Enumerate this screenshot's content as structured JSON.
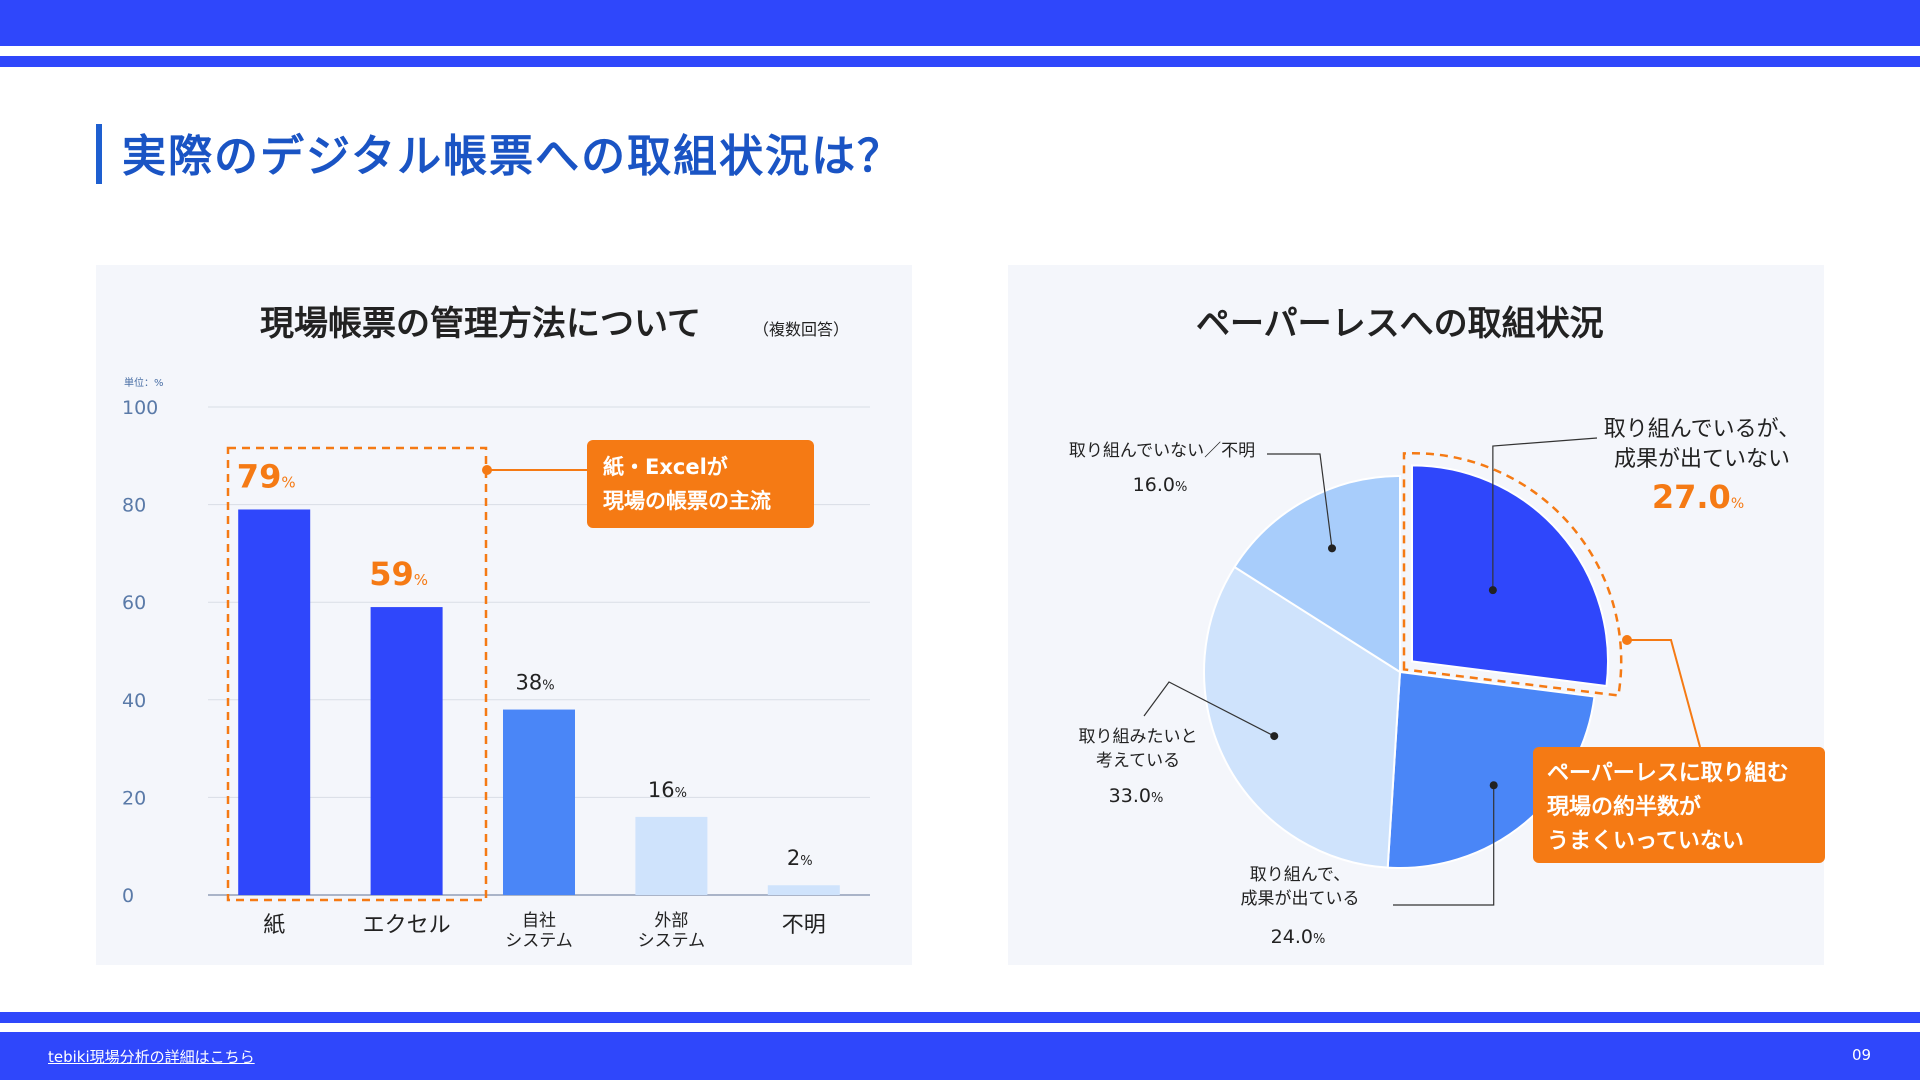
{
  "page": {
    "title": "実際のデジタル帳票への取組状況は？",
    "footer_link": "tebiki現場分析の詳細はこちら",
    "page_number": "09",
    "brand_color": "#2f47fb",
    "accent_color": "#f57a14"
  },
  "left_panel": {
    "title": "現場帳票の管理方法について",
    "title_note": "（複数回答）",
    "callout": [
      "紙・Excelが",
      "現場の帳票の主流"
    ]
  },
  "right_panel": {
    "title": "ペーパーレスへの取組状況",
    "callout": [
      "ペーパーレスに取り組む",
      "現場の約半数が",
      "うまくいっていない"
    ]
  },
  "chart_data": [
    {
      "type": "bar",
      "title": "現場帳票の管理方法について",
      "subtitle": "（複数回答）",
      "unit_label": "単位：%",
      "categories": [
        "紙",
        "エクセル",
        "自社\nシステム",
        "外部\nシステム",
        "不明"
      ],
      "values": [
        79,
        59,
        38,
        16,
        2
      ],
      "value_labels": [
        "79",
        "59",
        "38",
        "16",
        "2"
      ],
      "value_suffix": "%",
      "bar_colors": [
        "#2f47fb",
        "#2f47fb",
        "#4a86f7",
        "#cfe3fc",
        "#cfe3fc"
      ],
      "highlighted": [
        0,
        1
      ],
      "ylim": [
        0,
        100
      ],
      "yticks": [
        "0",
        "20",
        "40",
        "60",
        "80",
        "100"
      ],
      "grid": true
    },
    {
      "type": "pie",
      "title": "ペーパーレスへの取組状況",
      "slices": [
        {
          "label": "取り組んでいるが、\n成果が出ていない",
          "value": 27.0,
          "display": "27.0",
          "color": "#2f47fb",
          "highlighted": true
        },
        {
          "label": "取り組んで、\n成果が出ている",
          "value": 24.0,
          "display": "24.0",
          "color": "#4a86f7"
        },
        {
          "label": "取り組みたいと\n考えている",
          "value": 33.0,
          "display": "33.0",
          "color": "#cfe3fc"
        },
        {
          "label": "取り組んでいない／不明",
          "value": 16.0,
          "display": "16.0",
          "color": "#a8cdfb"
        }
      ],
      "value_suffix": "%"
    }
  ]
}
